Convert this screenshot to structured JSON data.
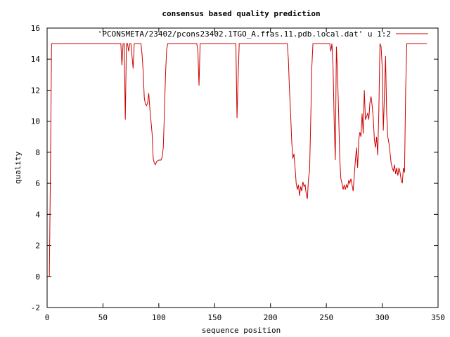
{
  "chart_data": {
    "type": "line",
    "title": "consensus based quality prediction",
    "xlabel": "sequence position",
    "ylabel": "quality",
    "xlim": [
      0,
      350
    ],
    "ylim": [
      -2,
      16
    ],
    "xticks": [
      0,
      50,
      100,
      150,
      200,
      250,
      300,
      350
    ],
    "yticks": [
      -2,
      0,
      2,
      4,
      6,
      8,
      10,
      12,
      14,
      16
    ],
    "grid": false,
    "legend_position": "top-right",
    "line_color": "#cc0000",
    "series": [
      {
        "name": "'PCONSMETA/23402/pcons23402.1TGO_A.ffas.11.pdb.local.dat' u 1:2",
        "points": [
          [
            1,
            0
          ],
          [
            2,
            0
          ],
          [
            3,
            7
          ],
          [
            4,
            15
          ],
          [
            66,
            15
          ],
          [
            67,
            13.6
          ],
          [
            68,
            15
          ],
          [
            69,
            15
          ],
          [
            70,
            10.1
          ],
          [
            71,
            15
          ],
          [
            72,
            15
          ],
          [
            73,
            14.5
          ],
          [
            74,
            15
          ],
          [
            75,
            15
          ],
          [
            76,
            14.2
          ],
          [
            77,
            13.4
          ],
          [
            78,
            15
          ],
          [
            84,
            15
          ],
          [
            85,
            14.3
          ],
          [
            86,
            13.2
          ],
          [
            87,
            11.5
          ],
          [
            88,
            11.1
          ],
          [
            89,
            11.0
          ],
          [
            90,
            11.2
          ],
          [
            91,
            11.8
          ],
          [
            92,
            10.8
          ],
          [
            93,
            10.0
          ],
          [
            94,
            9.2
          ],
          [
            95,
            7.6
          ],
          [
            96,
            7.3
          ],
          [
            97,
            7.2
          ],
          [
            98,
            7.4
          ],
          [
            100,
            7.5
          ],
          [
            102,
            7.5
          ],
          [
            103,
            7.7
          ],
          [
            104,
            8.3
          ],
          [
            105,
            10.5
          ],
          [
            106,
            13.0
          ],
          [
            107,
            14.6
          ],
          [
            108,
            15
          ],
          [
            134,
            15
          ],
          [
            135,
            14.5
          ],
          [
            136,
            12.3
          ],
          [
            137,
            15
          ],
          [
            168,
            15
          ],
          [
            169,
            15
          ],
          [
            170,
            10.2
          ],
          [
            171,
            12.8
          ],
          [
            172,
            15
          ],
          [
            215,
            15
          ],
          [
            216,
            14.0
          ],
          [
            217,
            12.0
          ],
          [
            218,
            10.5
          ],
          [
            219,
            8.7
          ],
          [
            220,
            7.6
          ],
          [
            221,
            7.9
          ],
          [
            222,
            7.0
          ],
          [
            223,
            6.0
          ],
          [
            224,
            5.6
          ],
          [
            225,
            5.9
          ],
          [
            226,
            5.2
          ],
          [
            227,
            5.8
          ],
          [
            228,
            5.5
          ],
          [
            229,
            6.1
          ],
          [
            230,
            5.8
          ],
          [
            231,
            5.9
          ],
          [
            232,
            5.3
          ],
          [
            233,
            5.0
          ],
          [
            234,
            6.3
          ],
          [
            235,
            6.8
          ],
          [
            236,
            10.0
          ],
          [
            237,
            13.5
          ],
          [
            238,
            15
          ],
          [
            253,
            15
          ],
          [
            254,
            14.5
          ],
          [
            255,
            15
          ],
          [
            256,
            13.5
          ],
          [
            257,
            10.0
          ],
          [
            258,
            7.5
          ],
          [
            259,
            14.8
          ],
          [
            260,
            13.0
          ],
          [
            261,
            10.5
          ],
          [
            262,
            7.6
          ],
          [
            263,
            6.3
          ],
          [
            264,
            6.0
          ],
          [
            265,
            5.6
          ],
          [
            266,
            5.9
          ],
          [
            267,
            5.6
          ],
          [
            268,
            5.9
          ],
          [
            269,
            5.7
          ],
          [
            270,
            6.2
          ],
          [
            271,
            6.0
          ],
          [
            272,
            6.3
          ],
          [
            273,
            5.9
          ],
          [
            274,
            5.5
          ],
          [
            275,
            6.5
          ],
          [
            276,
            7.5
          ],
          [
            277,
            8.3
          ],
          [
            278,
            7.0
          ],
          [
            279,
            8.8
          ],
          [
            280,
            9.3
          ],
          [
            281,
            9.0
          ],
          [
            282,
            10.5
          ],
          [
            283,
            9.2
          ],
          [
            284,
            12.0
          ],
          [
            285,
            10.1
          ],
          [
            286,
            10.3
          ],
          [
            287,
            10.5
          ],
          [
            288,
            10.1
          ],
          [
            289,
            11.2
          ],
          [
            290,
            11.6
          ],
          [
            291,
            11.0
          ],
          [
            292,
            10.2
          ],
          [
            293,
            8.8
          ],
          [
            294,
            8.3
          ],
          [
            295,
            9.0
          ],
          [
            296,
            7.8
          ],
          [
            297,
            10.7
          ],
          [
            298,
            15
          ],
          [
            299,
            14.8
          ],
          [
            300,
            13.5
          ],
          [
            301,
            9.4
          ],
          [
            302,
            11.7
          ],
          [
            303,
            14.2
          ],
          [
            304,
            10.5
          ],
          [
            305,
            9.0
          ],
          [
            306,
            8.6
          ],
          [
            307,
            8.0
          ],
          [
            308,
            7.3
          ],
          [
            309,
            7.0
          ],
          [
            310,
            6.8
          ],
          [
            311,
            7.2
          ],
          [
            312,
            6.6
          ],
          [
            313,
            7.0
          ],
          [
            314,
            6.5
          ],
          [
            315,
            7.0
          ],
          [
            316,
            6.7
          ],
          [
            317,
            6.2
          ],
          [
            318,
            6.0
          ],
          [
            319,
            7.0
          ],
          [
            320,
            6.7
          ],
          [
            321,
            12.0
          ],
          [
            322,
            15
          ],
          [
            340,
            15
          ]
        ]
      }
    ]
  }
}
